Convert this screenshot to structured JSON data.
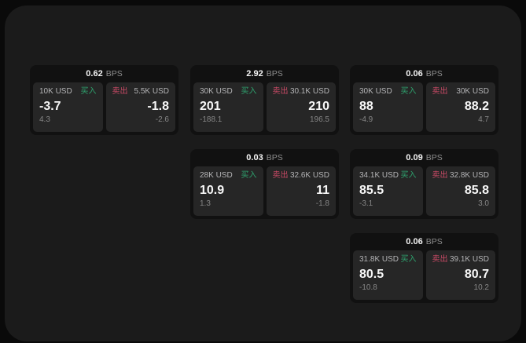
{
  "labels": {
    "bps_unit": "BPS",
    "buy": "买入",
    "sell": "卖出"
  },
  "colors": {
    "page_background": "#0a0a0a",
    "surface": "#1b1b1b",
    "card_background": "#111111",
    "quote_panel_background": "#262626",
    "buy_green": "#2ea36e",
    "sell_red": "#c94a66",
    "price_text": "#f7f7f7",
    "muted_text": "#868686"
  },
  "cards": [
    {
      "bps": "0.62",
      "buy": {
        "size": "10K USD",
        "price": "-3.7",
        "sub": "4.3"
      },
      "sell": {
        "size": "5.5K USD",
        "price": "-1.8",
        "sub": "-2.6"
      }
    },
    {
      "bps": "2.92",
      "buy": {
        "size": "30K USD",
        "price": "201",
        "sub": "-188.1"
      },
      "sell": {
        "size": "30.1K USD",
        "price": "210",
        "sub": "196.5"
      }
    },
    {
      "bps": "0.06",
      "buy": {
        "size": "30K USD",
        "price": "88",
        "sub": "-4.9"
      },
      "sell": {
        "size": "30K USD",
        "price": "88.2",
        "sub": "4.7"
      }
    },
    {
      "bps": "0.03",
      "buy": {
        "size": "28K USD",
        "price": "10.9",
        "sub": "1.3"
      },
      "sell": {
        "size": "32.6K USD",
        "price": "11",
        "sub": "-1.8"
      }
    },
    {
      "bps": "0.09",
      "buy": {
        "size": "34.1K USD",
        "price": "85.5",
        "sub": "-3.1"
      },
      "sell": {
        "size": "32.8K USD",
        "price": "85.8",
        "sub": "3.0"
      }
    },
    {
      "bps": "0.06",
      "buy": {
        "size": "31.8K USD",
        "price": "80.5",
        "sub": "-10.8"
      },
      "sell": {
        "size": "39.1K USD",
        "price": "80.7",
        "sub": "10.2"
      }
    }
  ]
}
